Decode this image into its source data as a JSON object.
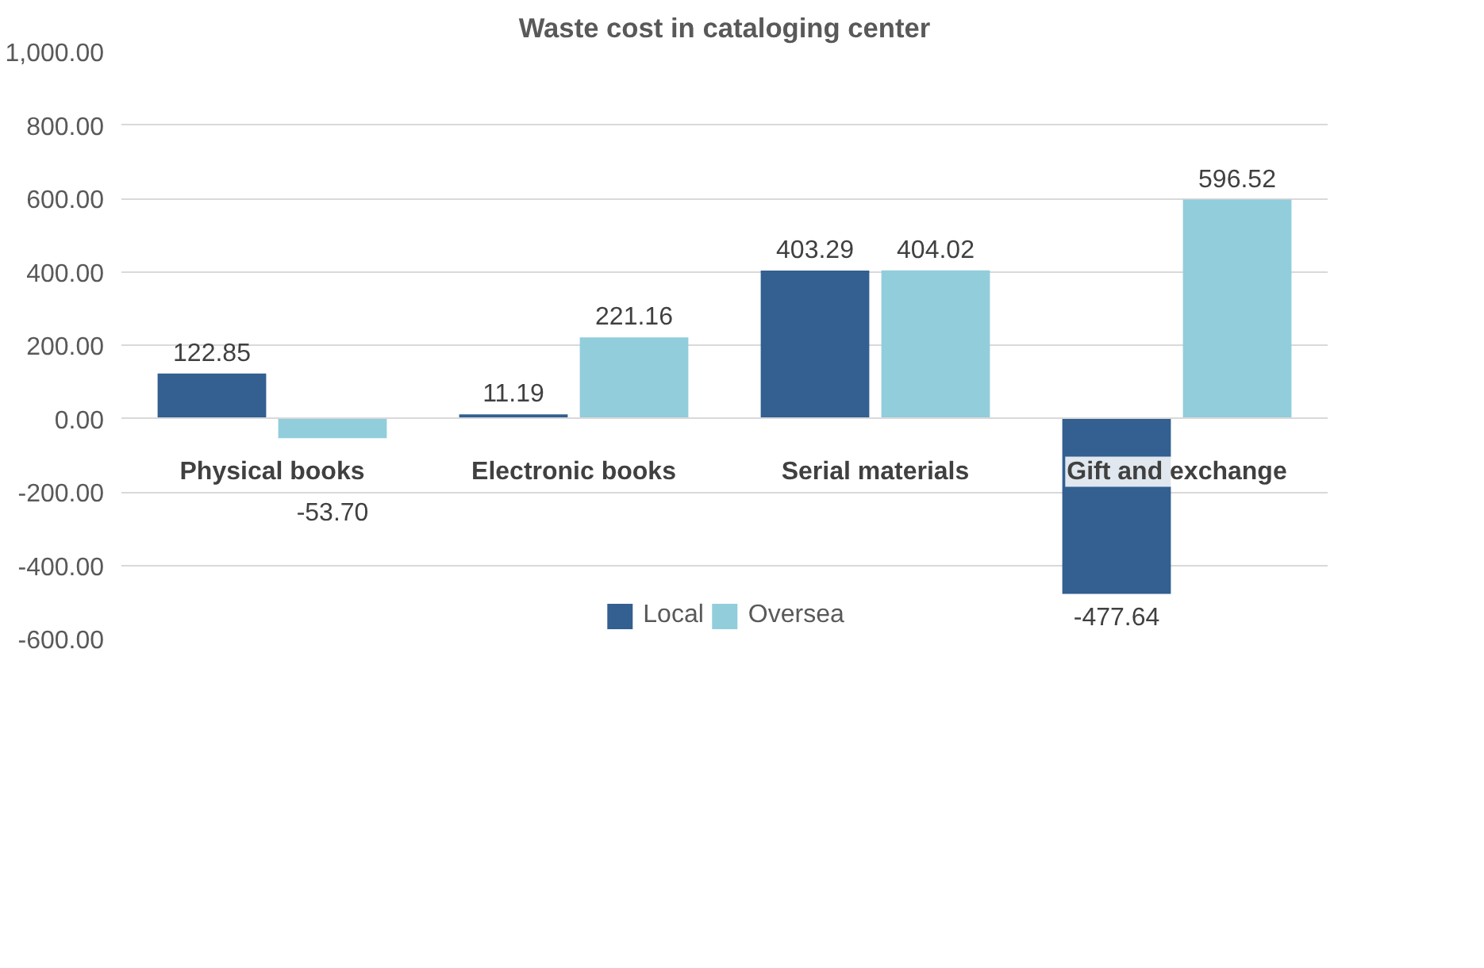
{
  "chart_data": {
    "type": "bar",
    "title": "Waste cost in cataloging center",
    "categories": [
      "Physical books",
      "Electronic books",
      "Serial materials",
      "Gift and exchange"
    ],
    "series": [
      {
        "name": "Local",
        "color": "#335f91",
        "values": [
          122.85,
          11.19,
          403.29,
          -477.64
        ],
        "value_labels": [
          "122.85",
          "11.19",
          "403.29",
          "-477.64"
        ]
      },
      {
        "name": "Oversea",
        "color": "#92cddc",
        "values": [
          -53.7,
          221.16,
          404.02,
          596.52
        ],
        "value_labels": [
          "-53.70",
          "221.16",
          "404.02",
          "596.52"
        ]
      }
    ],
    "ylim": [
      -600,
      1000
    ],
    "yticks": [
      {
        "value": -600,
        "label": "-600.00"
      },
      {
        "value": -400,
        "label": "-400.00"
      },
      {
        "value": -200,
        "label": "-200.00"
      },
      {
        "value": 0,
        "label": "0.00"
      },
      {
        "value": 200,
        "label": "200.00"
      },
      {
        "value": 400,
        "label": "400.00"
      },
      {
        "value": 600,
        "label": "600.00"
      },
      {
        "value": 800,
        "label": "800.00"
      },
      {
        "value": 1000,
        "label": "1,000.00"
      }
    ],
    "grid": "y",
    "legend": "bottom"
  }
}
